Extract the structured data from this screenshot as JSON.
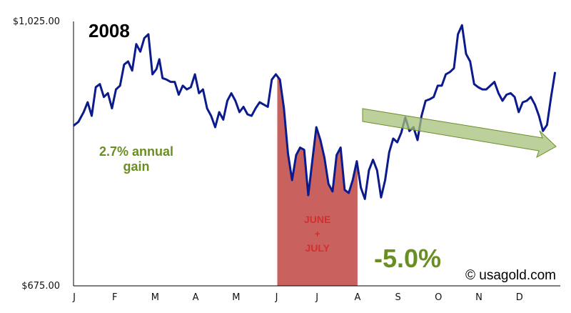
{
  "chart_data": {
    "type": "line",
    "title": "2008",
    "ylim": [
      675,
      1025
    ],
    "y_tick_labels": [
      "$1,025.00",
      "$675.00"
    ],
    "x_tick_labels": [
      "J",
      "F",
      "M",
      "A",
      "M",
      "J",
      "J",
      "A",
      "S",
      "O",
      "N",
      "D"
    ],
    "series": [
      {
        "color": "#0b1a8c",
        "x": [
          0.0,
          0.12,
          0.25,
          0.35,
          0.45,
          0.55,
          0.65,
          0.75,
          0.85,
          0.95,
          1.05,
          1.15,
          1.25,
          1.35,
          1.45,
          1.55,
          1.65,
          1.75,
          1.85,
          1.95,
          2.05,
          2.12,
          2.2,
          2.3,
          2.4,
          2.5,
          2.6,
          2.7,
          2.8,
          2.9,
          3.0,
          3.1,
          3.2,
          3.3,
          3.4,
          3.5,
          3.6,
          3.7,
          3.8,
          3.9,
          4.0,
          4.1,
          4.2,
          4.3,
          4.4,
          4.5,
          4.6,
          4.7,
          4.8,
          4.9,
          5.0,
          5.1,
          5.2,
          5.3,
          5.4,
          5.5,
          5.6,
          5.7,
          5.8,
          5.9,
          6.0,
          6.1,
          6.2,
          6.3,
          6.4,
          6.5,
          6.6,
          6.7,
          6.8,
          6.9,
          7.0,
          7.1,
          7.2,
          7.3,
          7.4,
          7.5,
          7.6,
          7.7,
          7.8,
          7.9,
          8.0,
          8.1,
          8.2,
          8.3,
          8.4,
          8.5,
          8.6,
          8.7,
          8.8,
          8.9,
          9.0,
          9.1,
          9.2,
          9.3,
          9.4,
          9.5,
          9.6,
          9.7,
          9.8,
          9.9,
          10.0,
          10.1,
          10.2,
          10.3,
          10.4,
          10.5,
          10.6,
          10.7,
          10.8,
          10.9,
          11.0,
          11.1,
          11.2,
          11.3,
          11.4,
          11.5,
          11.6,
          11.7,
          11.8,
          11.9
        ],
        "values": [
          887,
          892,
          905,
          918,
          900,
          938,
          942,
          925,
          930,
          910,
          935,
          940,
          968,
          972,
          960,
          995,
          985,
          1003,
          1008,
          955,
          962,
          975,
          950,
          948,
          945,
          945,
          928,
          940,
          935,
          938,
          955,
          930,
          935,
          910,
          900,
          885,
          905,
          895,
          920,
          930,
          920,
          905,
          912,
          902,
          900,
          910,
          918,
          915,
          912,
          948,
          955,
          948,
          910,
          850,
          815,
          848,
          858,
          855,
          795,
          840,
          885,
          868,
          845,
          810,
          800,
          848,
          858,
          802,
          798,
          815,
          840,
          805,
          790,
          828,
          842,
          828,
          792,
          815,
          852,
          870,
          865,
          878,
          898,
          880,
          885,
          868,
          900,
          920,
          922,
          925,
          940,
          940,
          955,
          958,
          963,
          1008,
          1020,
          982,
          972,
          942,
          938,
          935,
          935,
          940,
          945,
          930,
          920,
          928,
          930,
          925,
          905,
          918,
          920,
          925,
          915,
          900,
          880,
          888,
          925,
          958
        ],
        "values_note": ""
      }
    ],
    "shaded_region": {
      "x_start": 5.0,
      "x_end": 7.0,
      "color": "#c9625e",
      "label_lines": [
        "JUNE",
        "+",
        "JULY"
      ]
    },
    "annotations": {
      "gain_lines": [
        "2.7% annual",
        "gain"
      ],
      "change_pct": "-5.0%",
      "copyright": "© usagold.com",
      "arrow_color": "#a6c07a"
    },
    "grid": false,
    "legend": "none"
  }
}
